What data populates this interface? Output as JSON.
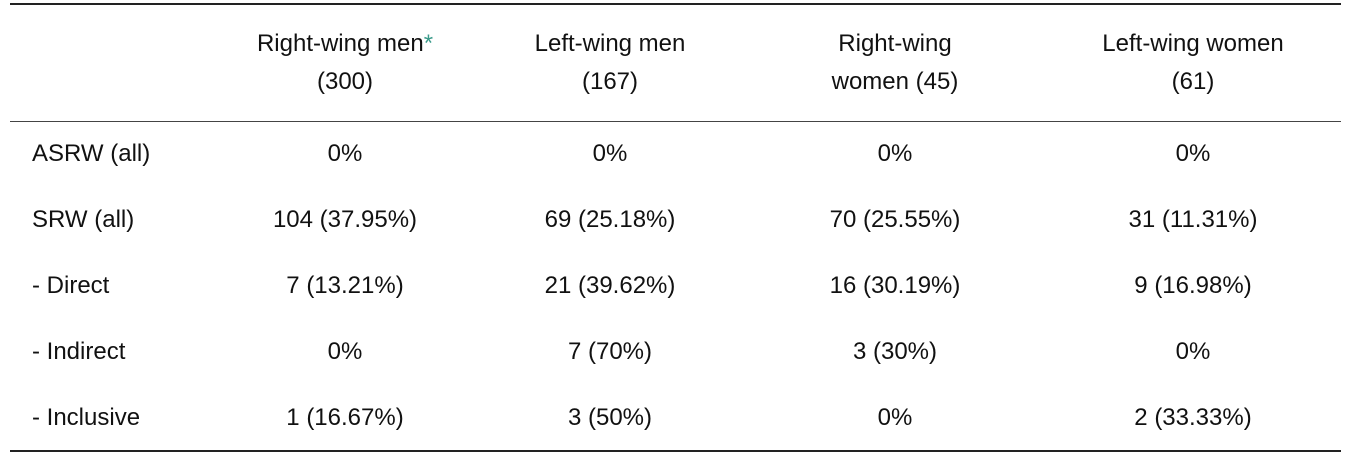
{
  "table": {
    "columns": [
      {
        "text": "Right-wing men",
        "marker": "*",
        "count": "(300)"
      },
      {
        "text": "Left-wing men",
        "count": "(167)"
      },
      {
        "text": "Right-wing women",
        "count": "(45)"
      },
      {
        "text": "Left-wing women",
        "count": "(61)"
      }
    ],
    "rows": [
      [
        "ASRW (all)",
        "0%",
        "0%",
        "0%",
        "0%"
      ],
      [
        "SRW (all)",
        "104 (37.95%)",
        "69 (25.18%)",
        "70 (25.55%)",
        "31 (11.31%)"
      ],
      [
        "- Direct",
        "7 (13.21%)",
        "21 (39.62%)",
        "16 (30.19%)",
        "9 (16.98%)"
      ],
      [
        "- Indirect",
        "0%",
        "7 (70%)",
        "3 (30%)",
        "0%"
      ],
      [
        "- Inclusive",
        "1 (16.67%)",
        "3 (50%)",
        "0%",
        "2 (33.33%)"
      ]
    ]
  }
}
